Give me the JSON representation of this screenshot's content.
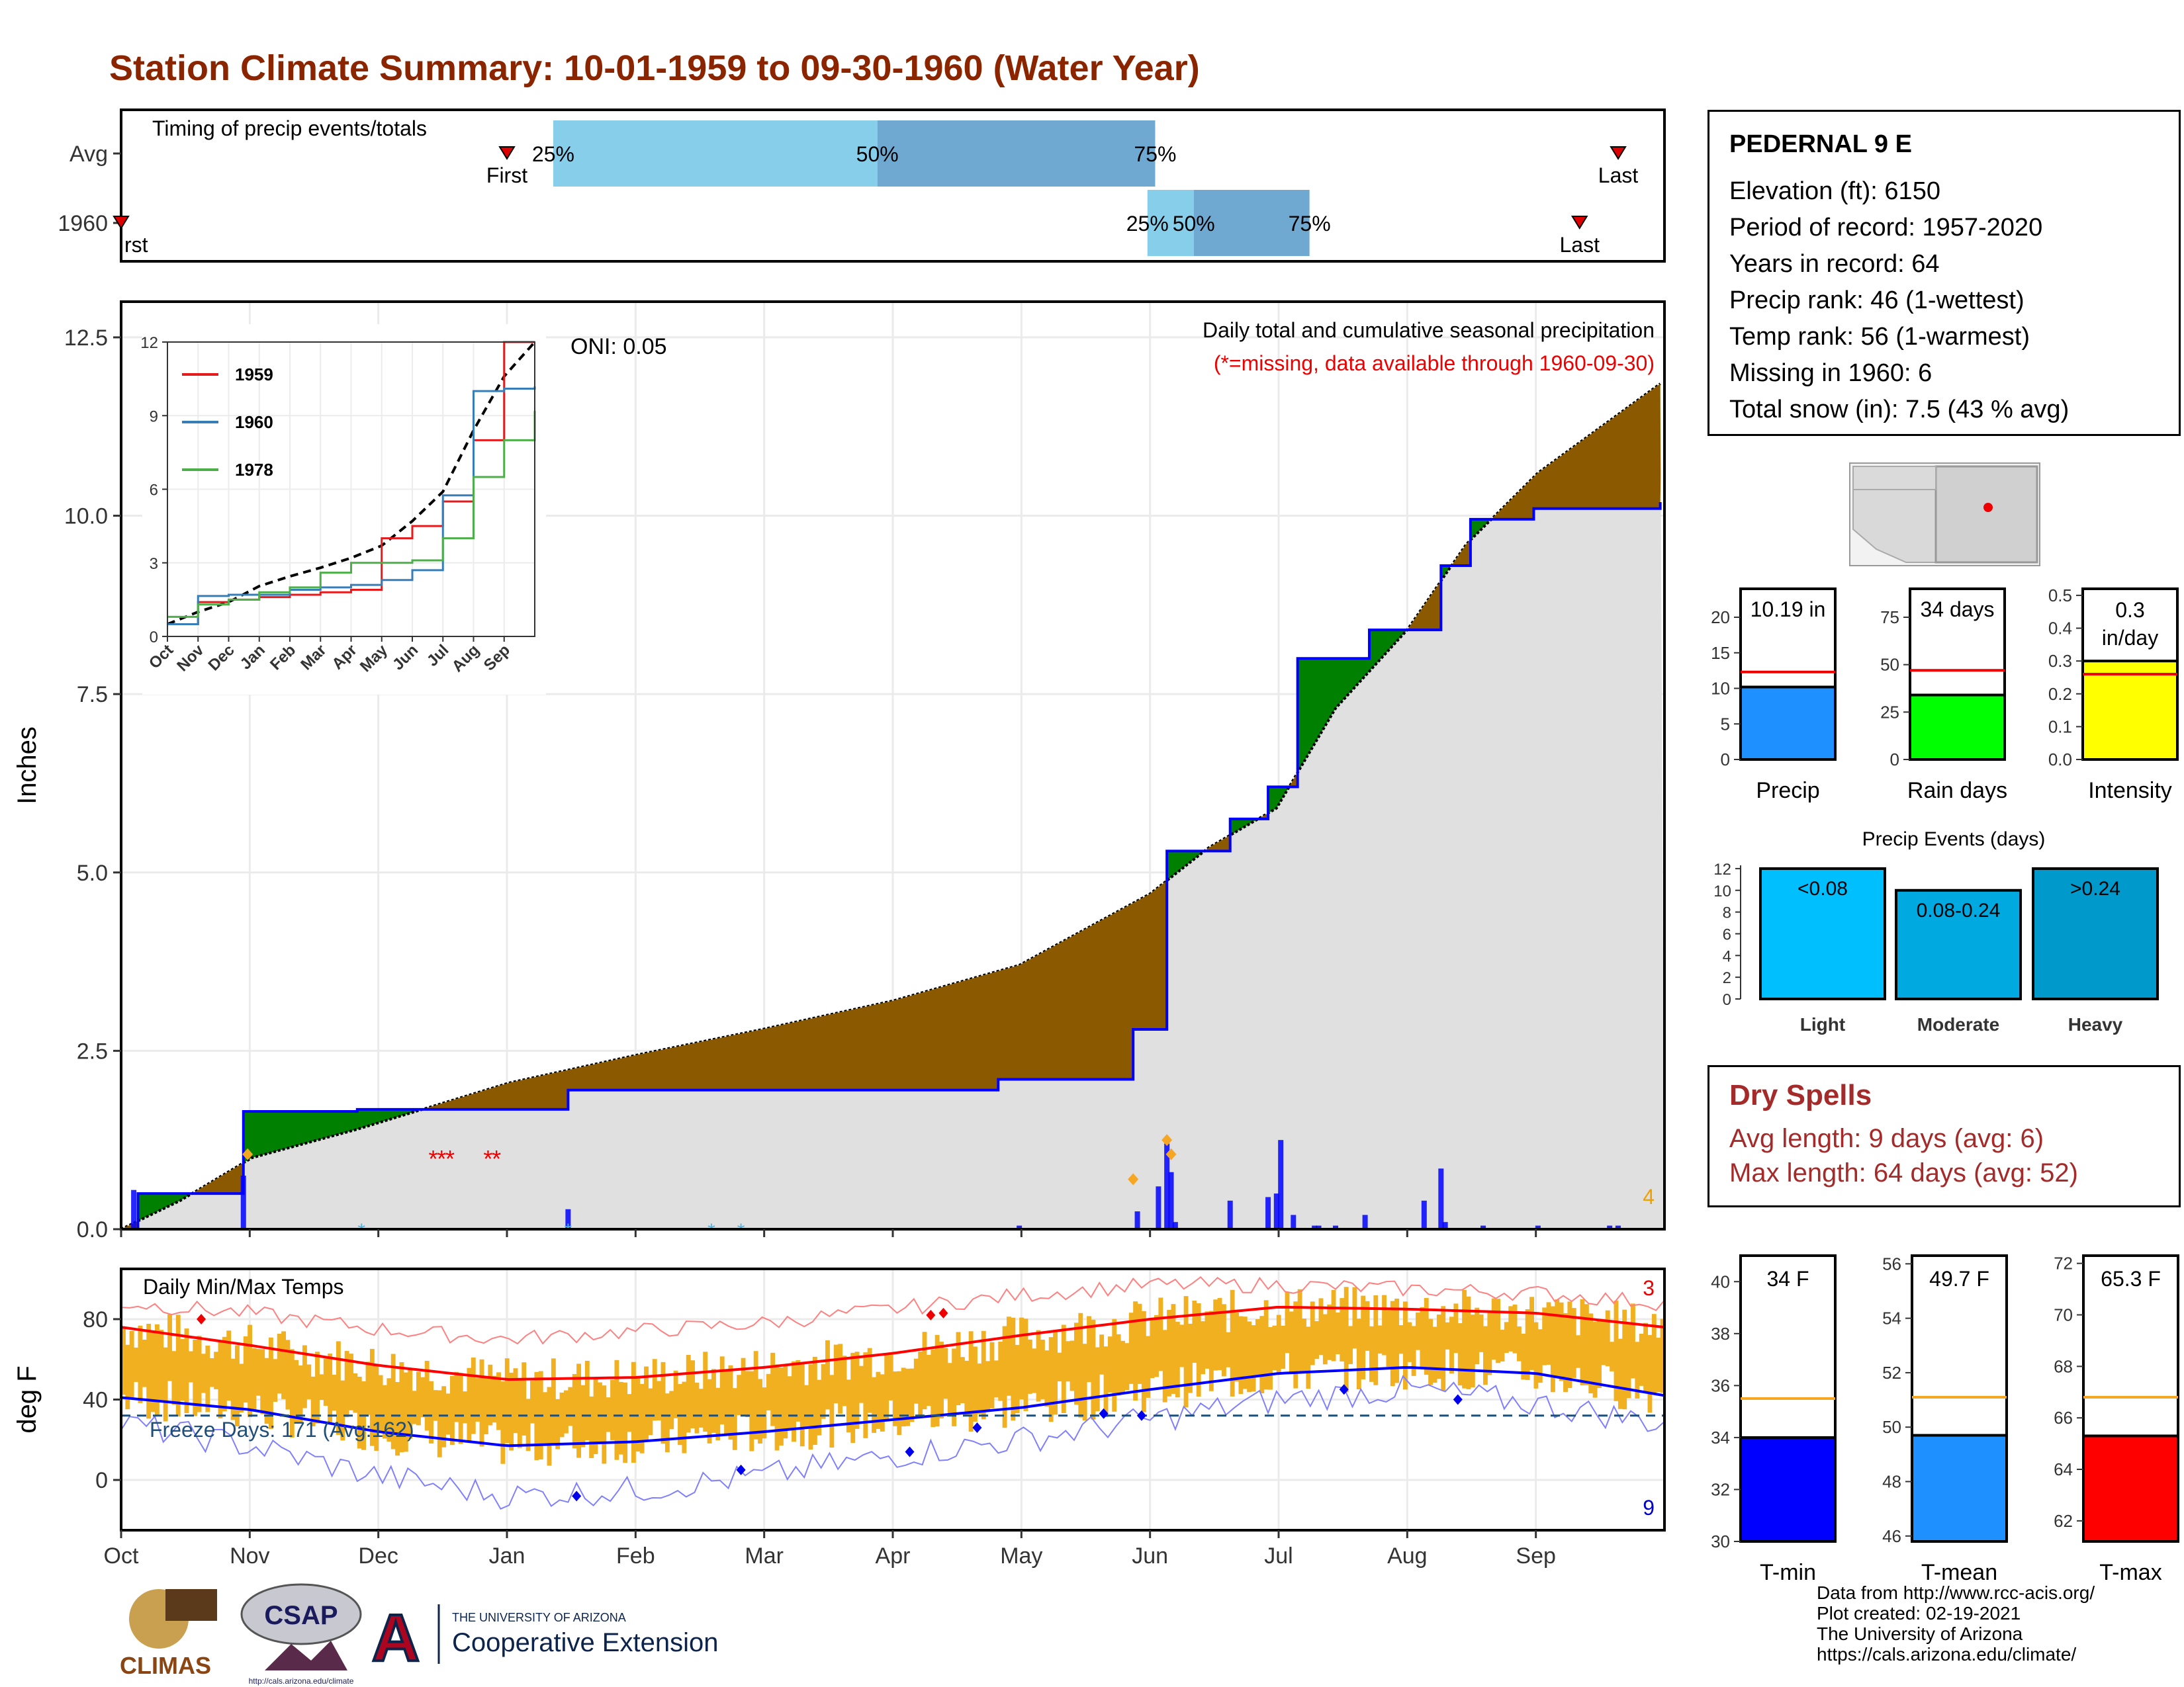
{
  "title": "Station Climate Summary: 10-01-1959 to 09-30-1960 (Water Year)",
  "timing": {
    "label": "Timing of precip events/totals",
    "rows": [
      {
        "name": "Avg",
        "first_marker": "First",
        "last_marker": "Last",
        "p25": "25%",
        "p50": "50%",
        "p75": "75%",
        "first": 0.25,
        "last": 0.97,
        "q25": 0.28,
        "q50": 0.49,
        "q75": 0.67
      },
      {
        "name": "1960",
        "first_marker": "rst",
        "last_marker": "Last",
        "p25": "25%",
        "p50": "50%",
        "p75": "75%",
        "first": 0.0,
        "last": 0.945,
        "q25": 0.665,
        "q50": 0.695,
        "q75": 0.77
      }
    ]
  },
  "station": {
    "name": "PEDERNAL 9 E",
    "lines": [
      "Elevation (ft): 6150",
      "Period of record: 1957-2020",
      "Years in record: 64",
      "Precip rank: 46 (1-wettest)",
      "Temp rank: 56 (1-warmest)",
      "Missing in 1960: 6",
      "Total snow (in): 7.5 (43 % avg)"
    ]
  },
  "precip_panel": {
    "ylabel": "Inches",
    "yticks": [
      "0.0",
      "2.5",
      "5.0",
      "7.5",
      "10.0",
      "12.5"
    ],
    "header": "Daily total and cumulative seasonal precipitation",
    "subheader": "(*=missing, data available through 1960-09-30)",
    "oni": "ONI: 0.05",
    "corner_count": "4"
  },
  "inset": {
    "yticks": [
      "0",
      "3",
      "6",
      "9",
      "12"
    ],
    "xticks": [
      "Oct",
      "Nov",
      "Dec",
      "Jan",
      "Feb",
      "Mar",
      "Apr",
      "May",
      "Jun",
      "Jul",
      "Aug",
      "Sep"
    ],
    "legend": [
      "1959",
      "1960",
      "1978"
    ]
  },
  "temp_panel": {
    "ylabel": "deg F",
    "label": "Daily Min/Max Temps",
    "freeze": "Freeze Days: 171 (Avg:162)",
    "yticks": [
      "0",
      "40",
      "80"
    ],
    "count_top": "3",
    "count_bottom": "9"
  },
  "months": [
    "Oct",
    "Nov",
    "Dec",
    "Jan",
    "Feb",
    "Mar",
    "Apr",
    "May",
    "Jun",
    "Jul",
    "Aug",
    "Sep"
  ],
  "minibars": [
    {
      "label": "Precip",
      "value_text": "10.19 in",
      "yticks": [
        "0",
        "5",
        "10",
        "15",
        "20"
      ]
    },
    {
      "label": "Rain days",
      "value_text": "34 days",
      "yticks": [
        "0",
        "25",
        "50",
        "75"
      ]
    },
    {
      "label": "Intensity",
      "value_text": "0.3 in/day",
      "yticks": [
        "0.0",
        "0.1",
        "0.2",
        "0.3",
        "0.4",
        "0.5"
      ]
    }
  ],
  "events": {
    "title": "Precip Events (days)",
    "yticks": [
      "0",
      "2",
      "4",
      "6",
      "8",
      "10",
      "12"
    ],
    "bars": [
      {
        "label": "Light",
        "cat": "<0.08"
      },
      {
        "label": "Moderate",
        "cat": "0.08-0.24"
      },
      {
        "label": "Heavy",
        "cat": ">0.24"
      }
    ]
  },
  "dry_spells": {
    "title": "Dry Spells",
    "avg": "Avg length: 9 days (avg: 6)",
    "max": "Max length: 64 days (avg: 52)"
  },
  "tempbars": [
    {
      "label": "T-min",
      "value_text": "34 F",
      "yticks": [
        "30",
        "32",
        "34",
        "36",
        "38",
        "40"
      ]
    },
    {
      "label": "T-mean",
      "value_text": "49.7 F",
      "yticks": [
        "46",
        "48",
        "50",
        "52",
        "54",
        "56"
      ]
    },
    {
      "label": "T-max",
      "value_text": "65.3 F",
      "yticks": [
        "62",
        "64",
        "66",
        "68",
        "70",
        "72"
      ]
    }
  ],
  "footer": [
    "Data from http://www.rcc-acis.org/",
    "Plot created: 02-19-2021",
    "The University of Arizona",
    "https://cals.arizona.edu/climate/"
  ],
  "logos": {
    "climas": "CLIMAS",
    "csap": "CSAP",
    "csap_url": "http://cals.arizona.edu/climate",
    "ua_small": "THE UNIVERSITY OF ARIZONA",
    "ua_big": "Cooperative Extension"
  },
  "colors": {
    "title": "#8b2500",
    "blue_line": "#0000ff",
    "above_fill": "#008000",
    "below_fill": "#8b5a00",
    "precip_bar": "#1e90ff",
    "rain_bar": "#00ff00",
    "intensity_bar": "#ffff00",
    "light": "#00bfff",
    "moderate": "#00a9e0",
    "heavy": "#0099cc",
    "tmin": "#0000ff",
    "tmean": "#1e90ff",
    "tmax": "#ff0000",
    "temp_range": "#f0b020"
  },
  "chart_data": [
    {
      "type": "area",
      "ylabel": "Inches",
      "ylim": [
        0,
        13
      ],
      "series": [
        {
          "name": "1960",
          "x": [
            "1959-10-01",
            "1959-10-05",
            "1959-10-28",
            "1959-10-30",
            "1959-11-26",
            "1959-12-31",
            "1960-01-15",
            "1960-04-26",
            "1960-05-28",
            "1960-06-05",
            "1960-06-20",
            "1960-06-29",
            "1960-07-06",
            "1960-07-23",
            "1960-08-09",
            "1960-08-16",
            "1960-08-31",
            "1960-09-30"
          ],
          "values": [
            0.0,
            0.5,
            0.5,
            1.65,
            1.68,
            1.68,
            1.95,
            2.1,
            2.8,
            5.3,
            5.75,
            6.2,
            8.0,
            8.4,
            9.3,
            9.95,
            10.1,
            10.19
          ]
        },
        {
          "name": "Average",
          "x": [
            "1959-10-01",
            "1959-10-15",
            "1959-11-01",
            "1959-11-26",
            "1960-01-01",
            "1960-02-01",
            "1960-03-01",
            "1960-04-01",
            "1960-05-01",
            "1960-06-01",
            "1960-06-15",
            "1960-07-01",
            "1960-07-15",
            "1960-08-01",
            "1960-08-15",
            "1960-09-01",
            "1960-09-30"
          ],
          "values": [
            0.0,
            0.4,
            1.0,
            1.4,
            2.05,
            2.45,
            2.8,
            3.2,
            3.7,
            4.7,
            5.35,
            5.9,
            7.3,
            8.4,
            9.6,
            10.6,
            11.85
          ]
        }
      ],
      "daily_precip": {
        "x": [
          "1959-10-04",
          "1959-10-30",
          "1960-01-15",
          "1960-05-01",
          "1960-05-29",
          "1960-06-03",
          "1960-06-05",
          "1960-06-06",
          "1960-06-07",
          "1960-06-20",
          "1960-06-29",
          "1960-07-01",
          "1960-07-02",
          "1960-07-05",
          "1960-07-10",
          "1960-07-11",
          "1960-07-15",
          "1960-07-22",
          "1960-08-05",
          "1960-08-09",
          "1960-08-10",
          "1960-08-19",
          "1960-09-01",
          "1960-09-18",
          "1960-09-20"
        ],
        "values": [
          0.55,
          0.75,
          0.28,
          0.05,
          0.25,
          0.6,
          1.2,
          0.8,
          0.1,
          0.4,
          0.45,
          0.5,
          1.25,
          0.2,
          0.05,
          0.05,
          0.05,
          0.2,
          0.4,
          0.85,
          0.1,
          0.05,
          0.05,
          0.05,
          0.05
        ]
      }
    },
    {
      "type": "line",
      "title": "inset",
      "ylim": [
        0,
        12
      ],
      "x": [
        "Oct",
        "Nov",
        "Dec",
        "Jan",
        "Feb",
        "Mar",
        "Apr",
        "May",
        "Jun",
        "Jul",
        "Aug",
        "Sep",
        "end"
      ],
      "series": [
        {
          "name": "1959",
          "values": [
            0.5,
            1.4,
            1.5,
            1.6,
            1.7,
            1.8,
            1.9,
            4.0,
            4.5,
            5.5,
            8.0,
            12.0,
            12.0
          ]
        },
        {
          "name": "1960",
          "values": [
            0.5,
            1.65,
            1.7,
            1.7,
            1.9,
            2.0,
            2.1,
            2.3,
            2.7,
            5.75,
            10.0,
            10.1,
            10.19
          ]
        },
        {
          "name": "1978",
          "values": [
            0.8,
            1.3,
            1.5,
            1.8,
            2.0,
            2.6,
            3.0,
            3.0,
            3.1,
            4.0,
            6.5,
            8.0,
            9.2
          ]
        }
      ]
    },
    {
      "type": "line",
      "ylabel": "deg F",
      "ylim": [
        -25,
        105
      ],
      "x": [
        "Oct",
        "Nov",
        "Dec",
        "Jan",
        "Feb",
        "Mar",
        "Apr",
        "May",
        "Jun",
        "Jul",
        "Aug",
        "Sep",
        "end"
      ],
      "series": [
        {
          "name": "avg max",
          "values": [
            76,
            67,
            57,
            50,
            51,
            56,
            63,
            72,
            80,
            86,
            85,
            83,
            76
          ]
        },
        {
          "name": "avg min",
          "values": [
            41,
            35,
            24,
            17,
            19,
            24,
            30,
            36,
            45,
            53,
            56,
            53,
            42
          ]
        },
        {
          "name": "record max",
          "values": [
            88,
            83,
            75,
            70,
            74,
            78,
            85,
            92,
            97,
            97,
            95,
            93,
            88
          ]
        },
        {
          "name": "record min",
          "values": [
            28,
            17,
            2,
            -8,
            -5,
            2,
            12,
            20,
            30,
            40,
            45,
            38,
            28
          ]
        }
      ],
      "freeze_line": 32
    },
    {
      "type": "bar",
      "categories": [
        "Precip",
        "Rain days",
        "Intensity"
      ],
      "values": [
        10.19,
        34,
        0.3
      ],
      "averages": [
        12.3,
        47,
        0.26
      ],
      "ylims": [
        [
          0,
          24
        ],
        [
          0,
          90
        ],
        [
          0,
          0.52
        ]
      ]
    },
    {
      "type": "bar",
      "title": "Precip Events (days)",
      "categories": [
        "Light",
        "Moderate",
        "Heavy"
      ],
      "values": [
        12,
        10,
        12
      ],
      "ylim": [
        0,
        12.3
      ]
    },
    {
      "type": "bar",
      "categories": [
        "T-min",
        "T-mean",
        "T-max"
      ],
      "values": [
        34.0,
        49.7,
        65.3
      ],
      "averages": [
        35.5,
        51.1,
        66.8
      ],
      "ylims": [
        [
          30,
          41
        ],
        [
          45.8,
          56.3
        ],
        [
          61.2,
          72.3
        ]
      ]
    }
  ]
}
